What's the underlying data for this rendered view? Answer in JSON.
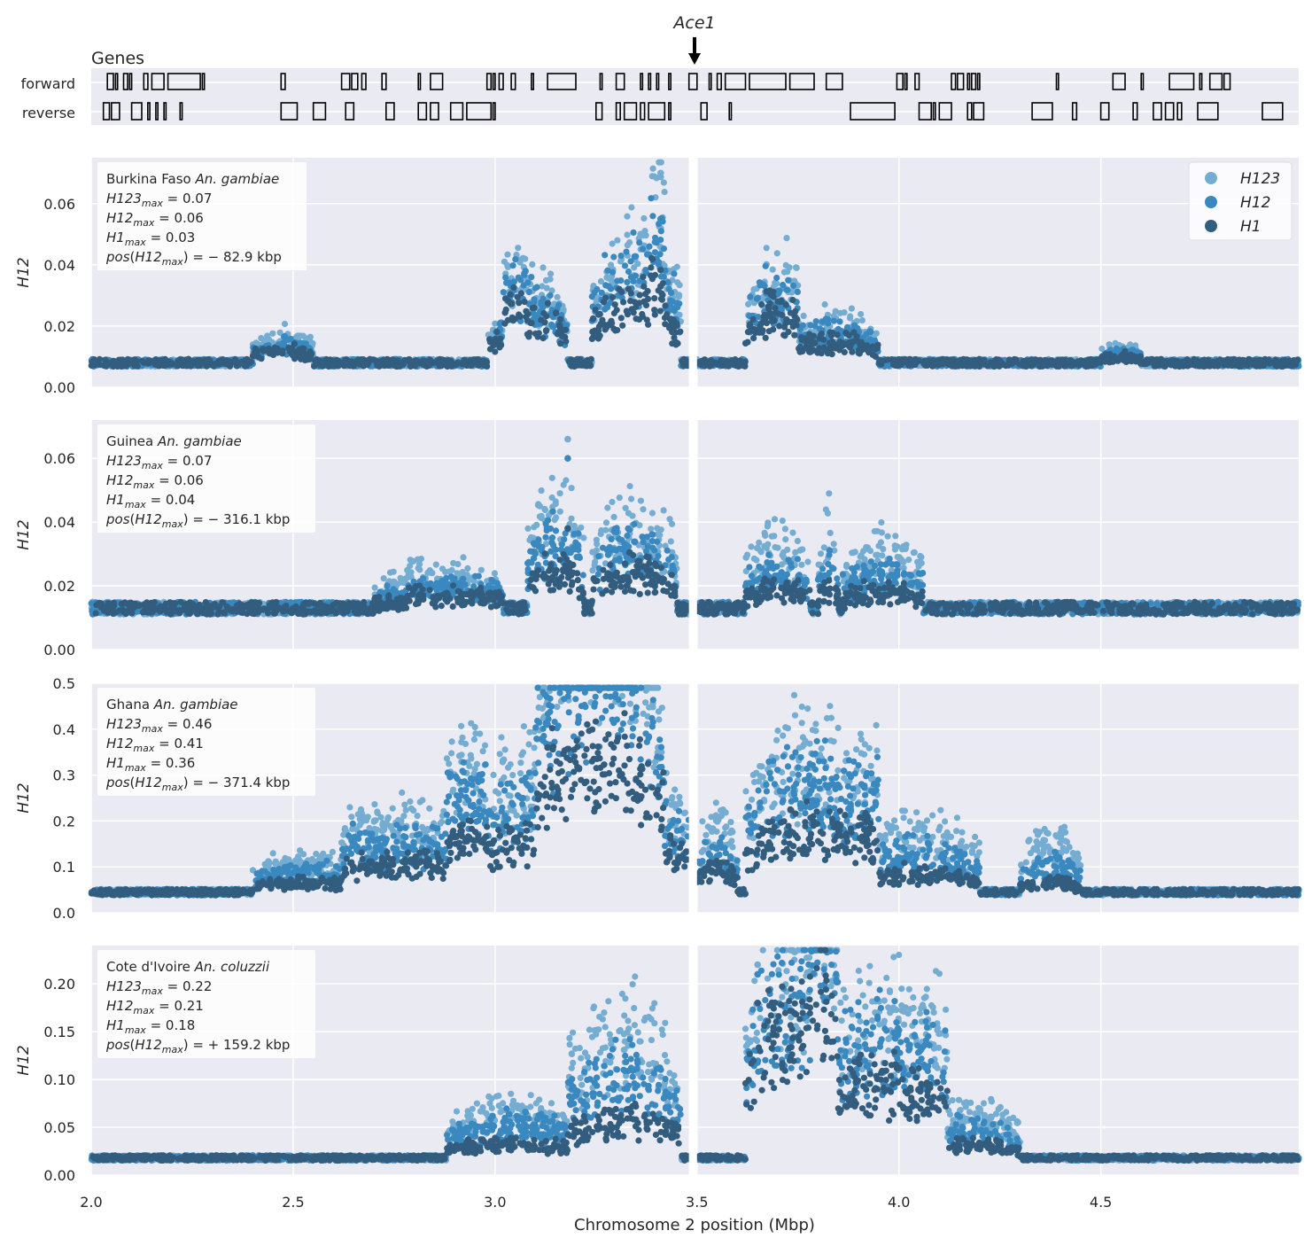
{
  "genes": {
    "title": "Genes",
    "track_labels": [
      "forward",
      "reverse"
    ],
    "arrow_label": "Ace1",
    "arrow_x": 3.49
  },
  "axis": {
    "xlabel": "Chromosome 2 position (Mbp)",
    "xlim": [
      2.0,
      4.99
    ],
    "xticks": [
      2.0,
      2.5,
      3.0,
      3.5,
      4.0,
      4.5
    ],
    "xtick_labels": [
      "2.0",
      "2.5",
      "3.0",
      "3.5",
      "4.0",
      "4.5"
    ],
    "gap": [
      3.48,
      3.5
    ]
  },
  "legend": {
    "position": "top-right",
    "entries": [
      {
        "label": "H123",
        "color": "#74add1"
      },
      {
        "label": "H12",
        "color": "#3a88c0"
      },
      {
        "label": "H1",
        "color": "#325d7e"
      }
    ]
  },
  "chart_data": [
    {
      "type": "scatter",
      "ylabel": "H12",
      "ylim": [
        0,
        0.075
      ],
      "yticks": [
        0.0,
        0.02,
        0.04,
        0.06
      ],
      "ytick_labels": [
        "0.00",
        "0.02",
        "0.04",
        "0.06"
      ],
      "grid": true,
      "annotation": [
        "Burkina Faso An. gambiae",
        "H123max = 0.07",
        "H12max = 0.06",
        "H1max = 0.03",
        "pos(H12max) = − 82.9 kbp"
      ],
      "annotation_parts": {
        "pop": "Burkina Faso",
        "species": "An. gambiae",
        "h123": "= 0.07",
        "h12": "= 0.06",
        "h1": "= 0.03",
        "pos": "= − 82.9 kbp"
      },
      "baseline": 0.008,
      "peaks": [
        {
          "x": [
            2.98,
            3.08
          ],
          "h1": 0.008,
          "h12": 0.011,
          "h123": 0.013
        },
        {
          "x": [
            3.02,
            3.18
          ],
          "h1": 0.014,
          "h12": 0.019,
          "h123": 0.023
        },
        {
          "x": [
            3.24,
            3.46
          ],
          "h1": 0.02,
          "h12": 0.03,
          "h123": 0.036
        },
        {
          "x": [
            3.38,
            3.42
          ],
          "h1": 0.01,
          "h12": 0.015,
          "h123": 0.025
        },
        {
          "x": [
            3.62,
            3.75
          ],
          "h1": 0.016,
          "h12": 0.022,
          "h123": 0.026
        },
        {
          "x": [
            3.72,
            3.95
          ],
          "h1": 0.007,
          "h12": 0.01,
          "h123": 0.013
        },
        {
          "x": [
            2.4,
            2.55
          ],
          "h1": 0.004,
          "h12": 0.006,
          "h123": 0.008
        },
        {
          "x": [
            4.5,
            4.6
          ],
          "h1": 0.002,
          "h12": 0.003,
          "h123": 0.004
        }
      ],
      "max": {
        "x": 3.41,
        "h1": 0.033,
        "h12": 0.055,
        "h123": 0.07
      }
    },
    {
      "type": "scatter",
      "ylabel": "H12",
      "ylim": [
        0,
        0.072
      ],
      "yticks": [
        0.0,
        0.02,
        0.04,
        0.06
      ],
      "ytick_labels": [
        "0.00",
        "0.02",
        "0.04",
        "0.06"
      ],
      "grid": true,
      "annotation": [
        "Guinea An. gambiae",
        "H123max = 0.07",
        "H12max = 0.06",
        "H1max = 0.04",
        "pos(H12max) = − 316.1 kbp"
      ],
      "annotation_parts": {
        "pop": "Guinea",
        "species": "An. gambiae",
        "h123": "= 0.07",
        "h12": "= 0.06",
        "h1": "= 0.04",
        "pos": "= − 316.1 kbp"
      },
      "baseline": 0.013,
      "peaks": [
        {
          "x": [
            2.78,
            3.02
          ],
          "h1": 0.004,
          "h12": 0.007,
          "h123": 0.01
        },
        {
          "x": [
            3.08,
            3.22
          ],
          "h1": 0.012,
          "h12": 0.022,
          "h123": 0.03
        },
        {
          "x": [
            3.24,
            3.45
          ],
          "h1": 0.011,
          "h12": 0.02,
          "h123": 0.027
        },
        {
          "x": [
            3.62,
            3.78
          ],
          "h1": 0.006,
          "h12": 0.012,
          "h123": 0.02
        },
        {
          "x": [
            3.8,
            3.85
          ],
          "h1": 0.006,
          "h12": 0.014,
          "h123": 0.024
        },
        {
          "x": [
            3.86,
            4.06
          ],
          "h1": 0.005,
          "h12": 0.011,
          "h123": 0.017
        },
        {
          "x": [
            2.7,
            2.82
          ],
          "h1": 0.002,
          "h12": 0.004,
          "h123": 0.007
        }
      ],
      "max": {
        "x": 3.18,
        "h1": 0.038,
        "h12": 0.06,
        "h123": 0.066
      }
    },
    {
      "type": "scatter",
      "ylabel": "H12",
      "ylim": [
        0,
        0.5
      ],
      "yticks": [
        0.0,
        0.1,
        0.2,
        0.3,
        0.4,
        0.5
      ],
      "ytick_labels": [
        "0.0",
        "0.1",
        "0.2",
        "0.3",
        "0.4",
        "0.5"
      ],
      "grid": true,
      "annotation": [
        "Ghana An. gambiae",
        "H123max = 0.46",
        "H12max = 0.41",
        "H1max = 0.36",
        "pos(H12max) = − 371.4 kbp"
      ],
      "annotation_parts": {
        "pop": "Ghana",
        "species": "An. gambiae",
        "h123": "= 0.46",
        "h12": "= 0.41",
        "h1": "= 0.36",
        "pos": "= − 371.4 kbp"
      },
      "baseline": 0.045,
      "peaks": [
        {
          "x": [
            2.4,
            2.68
          ],
          "h1": 0.02,
          "h12": 0.045,
          "h123": 0.065
        },
        {
          "x": [
            2.62,
            2.98
          ],
          "h1": 0.06,
          "h12": 0.1,
          "h123": 0.15
        },
        {
          "x": [
            2.88,
            3.48
          ],
          "h1": 0.12,
          "h12": 0.2,
          "h123": 0.26
        },
        {
          "x": [
            3.1,
            3.42
          ],
          "h1": 0.18,
          "h12": 0.28,
          "h123": 0.32
        },
        {
          "x": [
            3.5,
            3.6
          ],
          "h1": 0.05,
          "h12": 0.09,
          "h123": 0.14
        },
        {
          "x": [
            3.62,
            3.95
          ],
          "h1": 0.14,
          "h12": 0.24,
          "h123": 0.3
        },
        {
          "x": [
            3.9,
            4.2
          ],
          "h1": 0.04,
          "h12": 0.09,
          "h123": 0.13
        },
        {
          "x": [
            4.3,
            4.45
          ],
          "h1": 0.02,
          "h12": 0.06,
          "h123": 0.11
        }
      ],
      "max": {
        "x": 3.13,
        "h1": 0.36,
        "h12": 0.41,
        "h123": 0.46
      }
    },
    {
      "type": "scatter",
      "ylabel": "H12",
      "ylim": [
        0,
        0.24
      ],
      "yticks": [
        0.0,
        0.05,
        0.1,
        0.15,
        0.2
      ],
      "ytick_labels": [
        "0.00",
        "0.05",
        "0.10",
        "0.15",
        "0.20"
      ],
      "grid": true,
      "annotation": [
        "Cote d'Ivoire An. coluzzii",
        "H123max = 0.22",
        "H12max = 0.21",
        "H1max = 0.18",
        "pos(H12max) = + 159.2 kbp"
      ],
      "annotation_parts": {
        "pop": "Cote d'Ivoire",
        "species": "An. coluzzii",
        "h123": "= 0.22",
        "h12": "= 0.21",
        "h1": "= 0.18",
        "pos": "= + 159.2 kbp"
      },
      "baseline": 0.018,
      "peaks": [
        {
          "x": [
            2.88,
            3.2
          ],
          "h1": 0.015,
          "h12": 0.035,
          "h123": 0.05
        },
        {
          "x": [
            3.18,
            3.46
          ],
          "h1": 0.04,
          "h12": 0.085,
          "h123": 0.13
        },
        {
          "x": [
            3.62,
            3.85
          ],
          "h1": 0.14,
          "h12": 0.17,
          "h123": 0.19
        },
        {
          "x": [
            3.78,
            4.12
          ],
          "h1": 0.08,
          "h12": 0.12,
          "h123": 0.15
        },
        {
          "x": [
            4.05,
            4.3
          ],
          "h1": 0.015,
          "h12": 0.03,
          "h123": 0.045
        }
      ],
      "max": {
        "x": 3.65,
        "h1": 0.18,
        "h12": 0.21,
        "h123": 0.22
      }
    }
  ],
  "gene_models": {
    "forward": [
      [
        2.04,
        2.055
      ],
      [
        2.06,
        2.065
      ],
      [
        2.08,
        2.09
      ],
      [
        2.095,
        2.1
      ],
      [
        2.13,
        2.14
      ],
      [
        2.15,
        2.18
      ],
      [
        2.19,
        2.27
      ],
      [
        2.275,
        2.28
      ],
      [
        2.47,
        2.48
      ],
      [
        2.62,
        2.64
      ],
      [
        2.645,
        2.66
      ],
      [
        2.67,
        2.68
      ],
      [
        2.72,
        2.73
      ],
      [
        2.81,
        2.815
      ],
      [
        2.84,
        2.87
      ],
      [
        2.98,
        2.99
      ],
      [
        2.995,
        3.0
      ],
      [
        3.01,
        3.02
      ],
      [
        3.04,
        3.05
      ],
      [
        3.09,
        3.095
      ],
      [
        3.13,
        3.2
      ],
      [
        3.26,
        3.265
      ],
      [
        3.3,
        3.32
      ],
      [
        3.36,
        3.365
      ],
      [
        3.38,
        3.385
      ],
      [
        3.4,
        3.405
      ],
      [
        3.43,
        3.435
      ],
      [
        3.48,
        3.5
      ],
      [
        3.53,
        3.535
      ],
      [
        3.55,
        3.56
      ],
      [
        3.57,
        3.62
      ],
      [
        3.63,
        3.72
      ],
      [
        3.73,
        3.79
      ],
      [
        3.82,
        3.86
      ],
      [
        3.995,
        4.01
      ],
      [
        4.015,
        4.02
      ],
      [
        4.04,
        4.05
      ],
      [
        4.13,
        4.14
      ],
      [
        4.145,
        4.16
      ],
      [
        4.17,
        4.175
      ],
      [
        4.18,
        4.19
      ],
      [
        4.195,
        4.2
      ],
      [
        4.39,
        4.395
      ],
      [
        4.53,
        4.56
      ],
      [
        4.6,
        4.605
      ],
      [
        4.67,
        4.73
      ],
      [
        4.745,
        4.75
      ],
      [
        4.77,
        4.8
      ],
      [
        4.805,
        4.82
      ]
    ],
    "reverse": [
      [
        2.03,
        2.045
      ],
      [
        2.05,
        2.07
      ],
      [
        2.1,
        2.125
      ],
      [
        2.14,
        2.145
      ],
      [
        2.16,
        2.165
      ],
      [
        2.18,
        2.185
      ],
      [
        2.22,
        2.225
      ],
      [
        2.47,
        2.51
      ],
      [
        2.55,
        2.58
      ],
      [
        2.63,
        2.65
      ],
      [
        2.73,
        2.75
      ],
      [
        2.81,
        2.83
      ],
      [
        2.84,
        2.86
      ],
      [
        2.89,
        2.92
      ],
      [
        2.93,
        2.99
      ],
      [
        2.995,
        3.0
      ],
      [
        3.25,
        3.265
      ],
      [
        3.3,
        3.31
      ],
      [
        3.32,
        3.35
      ],
      [
        3.36,
        3.37
      ],
      [
        3.38,
        3.42
      ],
      [
        3.43,
        3.435
      ],
      [
        3.51,
        3.525
      ],
      [
        3.58,
        3.585
      ],
      [
        3.88,
        3.99
      ],
      [
        4.05,
        4.08
      ],
      [
        4.085,
        4.09
      ],
      [
        4.1,
        4.13
      ],
      [
        4.17,
        4.18
      ],
      [
        4.185,
        4.21
      ],
      [
        4.33,
        4.38
      ],
      [
        4.43,
        4.44
      ],
      [
        4.5,
        4.52
      ],
      [
        4.58,
        4.59
      ],
      [
        4.63,
        4.65
      ],
      [
        4.66,
        4.68
      ],
      [
        4.69,
        4.7
      ],
      [
        4.74,
        4.79
      ],
      [
        4.9,
        4.95
      ]
    ]
  }
}
